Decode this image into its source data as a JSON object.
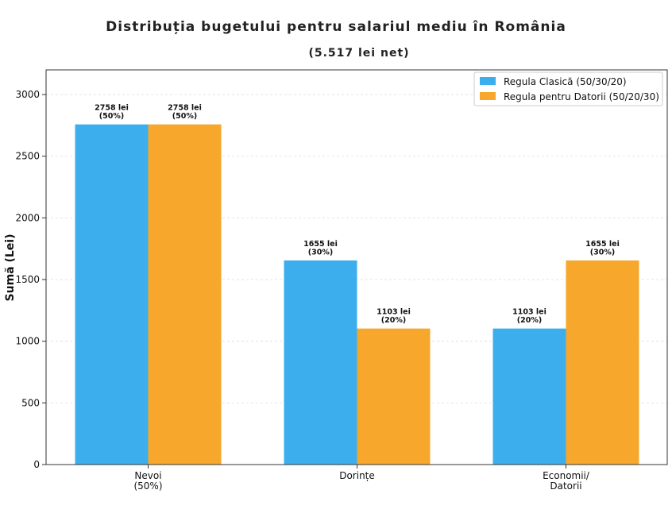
{
  "chart_data": {
    "type": "bar",
    "title": "Distribuția bugetului pentru salariul mediu în România",
    "subtitle": "(5.517 lei net)",
    "xlabel": "",
    "ylabel": "Sumă (Lei)",
    "ylim": [
      0,
      3200
    ],
    "yticks": [
      0,
      500,
      1000,
      1500,
      2000,
      2500,
      3000
    ],
    "grid": true,
    "legend_position": "top-right",
    "categories": [
      [
        "Nevoi",
        "(50%)"
      ],
      [
        "Dorințe"
      ],
      [
        "Economii/",
        "Datorii"
      ]
    ],
    "series": [
      {
        "name": "Regula Clasică (50/30/20)",
        "color": "#3daeed",
        "values": [
          2758,
          1655,
          1103
        ],
        "labels": [
          [
            "2758 lei",
            "(50%)"
          ],
          [
            "1655 lei",
            "(30%)"
          ],
          [
            "1103 lei",
            "(20%)"
          ]
        ]
      },
      {
        "name": "Regula pentru Datorii (50/20/30)",
        "color": "#f7a72b",
        "values": [
          2758,
          1103,
          1655
        ],
        "labels": [
          [
            "2758 lei",
            "(50%)"
          ],
          [
            "1103 lei",
            "(20%)"
          ],
          [
            "1655 lei",
            "(30%)"
          ]
        ]
      }
    ]
  }
}
